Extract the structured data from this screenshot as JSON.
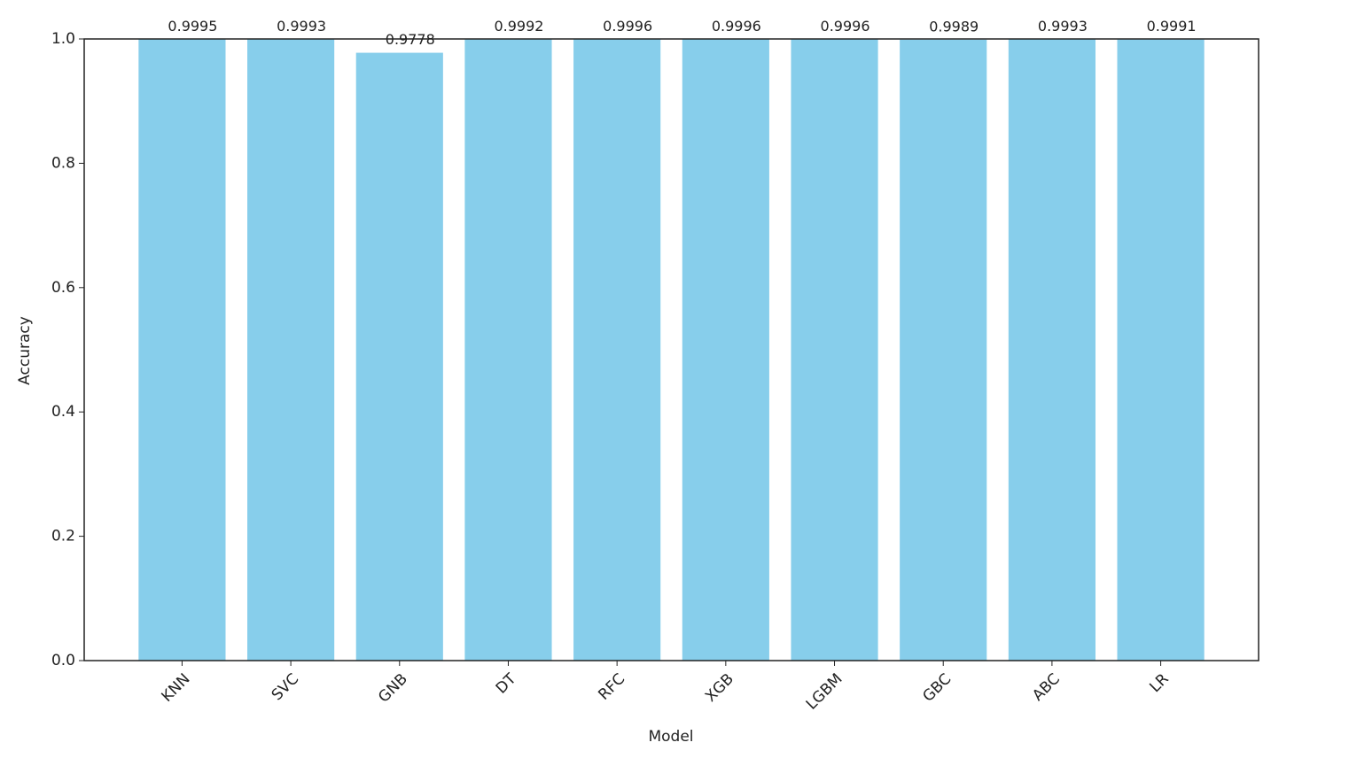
{
  "chart_data": {
    "type": "bar",
    "x_label": "Model",
    "y_label": "Accuracy",
    "categories": [
      "KNN",
      "SVC",
      "GNB",
      "DT",
      "RFC",
      "XGB",
      "LGBM",
      "GBC",
      "ABC",
      "LR"
    ],
    "values": [
      0.9995,
      0.9993,
      0.9778,
      0.9992,
      0.9996,
      0.9996,
      0.9996,
      0.9989,
      0.9993,
      0.9991
    ],
    "color": "#87ceeb",
    "ylim": [
      0,
      1
    ],
    "yticks": [
      {
        "value": 0,
        "label": "0.0"
      },
      0.2,
      0.4,
      0.6,
      0.8,
      {
        "value": 1,
        "label": "1.0"
      }
    ]
  }
}
